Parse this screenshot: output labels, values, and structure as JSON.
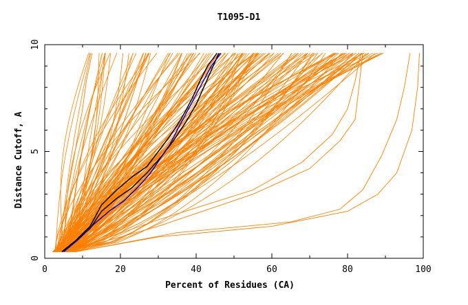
{
  "chart_data": {
    "type": "line",
    "title": "T1095-D1",
    "xlabel": "Percent of Residues (CA)",
    "ylabel": "Distance Cutoff, A",
    "xlim": [
      0,
      100
    ],
    "ylim": [
      0,
      10
    ],
    "x_ticks": [
      0,
      20,
      40,
      60,
      80,
      100
    ],
    "y_ticks": [
      0,
      5,
      10
    ],
    "grid": false,
    "legend": "none",
    "colors": {
      "bulk": "#ff8000",
      "highlight_black": "#000000",
      "highlight_blue": "#0000cc",
      "axis": "#000000",
      "background": "#ffffff"
    },
    "highlight_series": [
      {
        "color": "#000000",
        "x": [
          4.5,
          8,
          12,
          15,
          19,
          23,
          27,
          30,
          33,
          36,
          39,
          41,
          43,
          45.5
        ],
        "y": [
          0.3,
          0.8,
          1.5,
          2.5,
          3.2,
          3.8,
          4.3,
          5.0,
          5.7,
          6.5,
          7.5,
          8.3,
          9.0,
          9.6
        ]
      },
      {
        "color": "#000000",
        "x": [
          4.5,
          8,
          12,
          15,
          19,
          23,
          27,
          31,
          34,
          37,
          40,
          42,
          44,
          46
        ],
        "y": [
          0.3,
          0.8,
          1.4,
          2.2,
          2.8,
          3.3,
          4.0,
          4.8,
          5.5,
          6.3,
          7.2,
          8.0,
          8.8,
          9.6
        ]
      },
      {
        "color": "#0000cc",
        "x": [
          5,
          9,
          13,
          17,
          21,
          25,
          28,
          31,
          33,
          35,
          38,
          41,
          44,
          46.5
        ],
        "y": [
          0.3,
          0.9,
          1.6,
          2.2,
          2.7,
          3.4,
          4.0,
          4.8,
          5.3,
          6.0,
          7.0,
          8.0,
          9.0,
          9.6
        ]
      }
    ],
    "bulk_series": {
      "count": 160,
      "start_x_range": [
        2,
        8
      ],
      "start_y": 0.3,
      "end_y": 9.6,
      "end_x_range": [
        10,
        99
      ],
      "outliers": [
        {
          "x": [
            8,
            30,
            60,
            80,
            88,
            93,
            97,
            98.5,
            99
          ],
          "y": [
            0.3,
            1.0,
            1.5,
            2.2,
            3.0,
            4.0,
            6.0,
            8.0,
            9.6
          ]
        },
        {
          "x": [
            8,
            35,
            65,
            78,
            84,
            89,
            93,
            95,
            96.5
          ],
          "y": [
            0.3,
            1.2,
            1.7,
            2.3,
            3.2,
            4.8,
            6.5,
            8.0,
            9.6
          ]
        },
        {
          "x": [
            6,
            30,
            55,
            70,
            78,
            82,
            83,
            84
          ],
          "y": [
            0.3,
            1.5,
            3.0,
            4.2,
            5.5,
            6.5,
            8.0,
            9.6
          ]
        },
        {
          "x": [
            6,
            30,
            55,
            68,
            76,
            80,
            82,
            83.5
          ],
          "y": [
            0.3,
            1.8,
            3.2,
            4.5,
            5.8,
            7.0,
            8.3,
            9.6
          ]
        },
        {
          "x": [
            5,
            12,
            20,
            30,
            40,
            50,
            58,
            63
          ],
          "y": [
            0.3,
            1.2,
            2.5,
            4.0,
            5.5,
            7.0,
            8.5,
            9.6
          ]
        },
        {
          "x": [
            3,
            5,
            7,
            8.5,
            10,
            11,
            12.5
          ],
          "y": [
            0.3,
            2.0,
            4.0,
            5.5,
            7.0,
            8.3,
            9.6
          ]
        }
      ]
    }
  }
}
